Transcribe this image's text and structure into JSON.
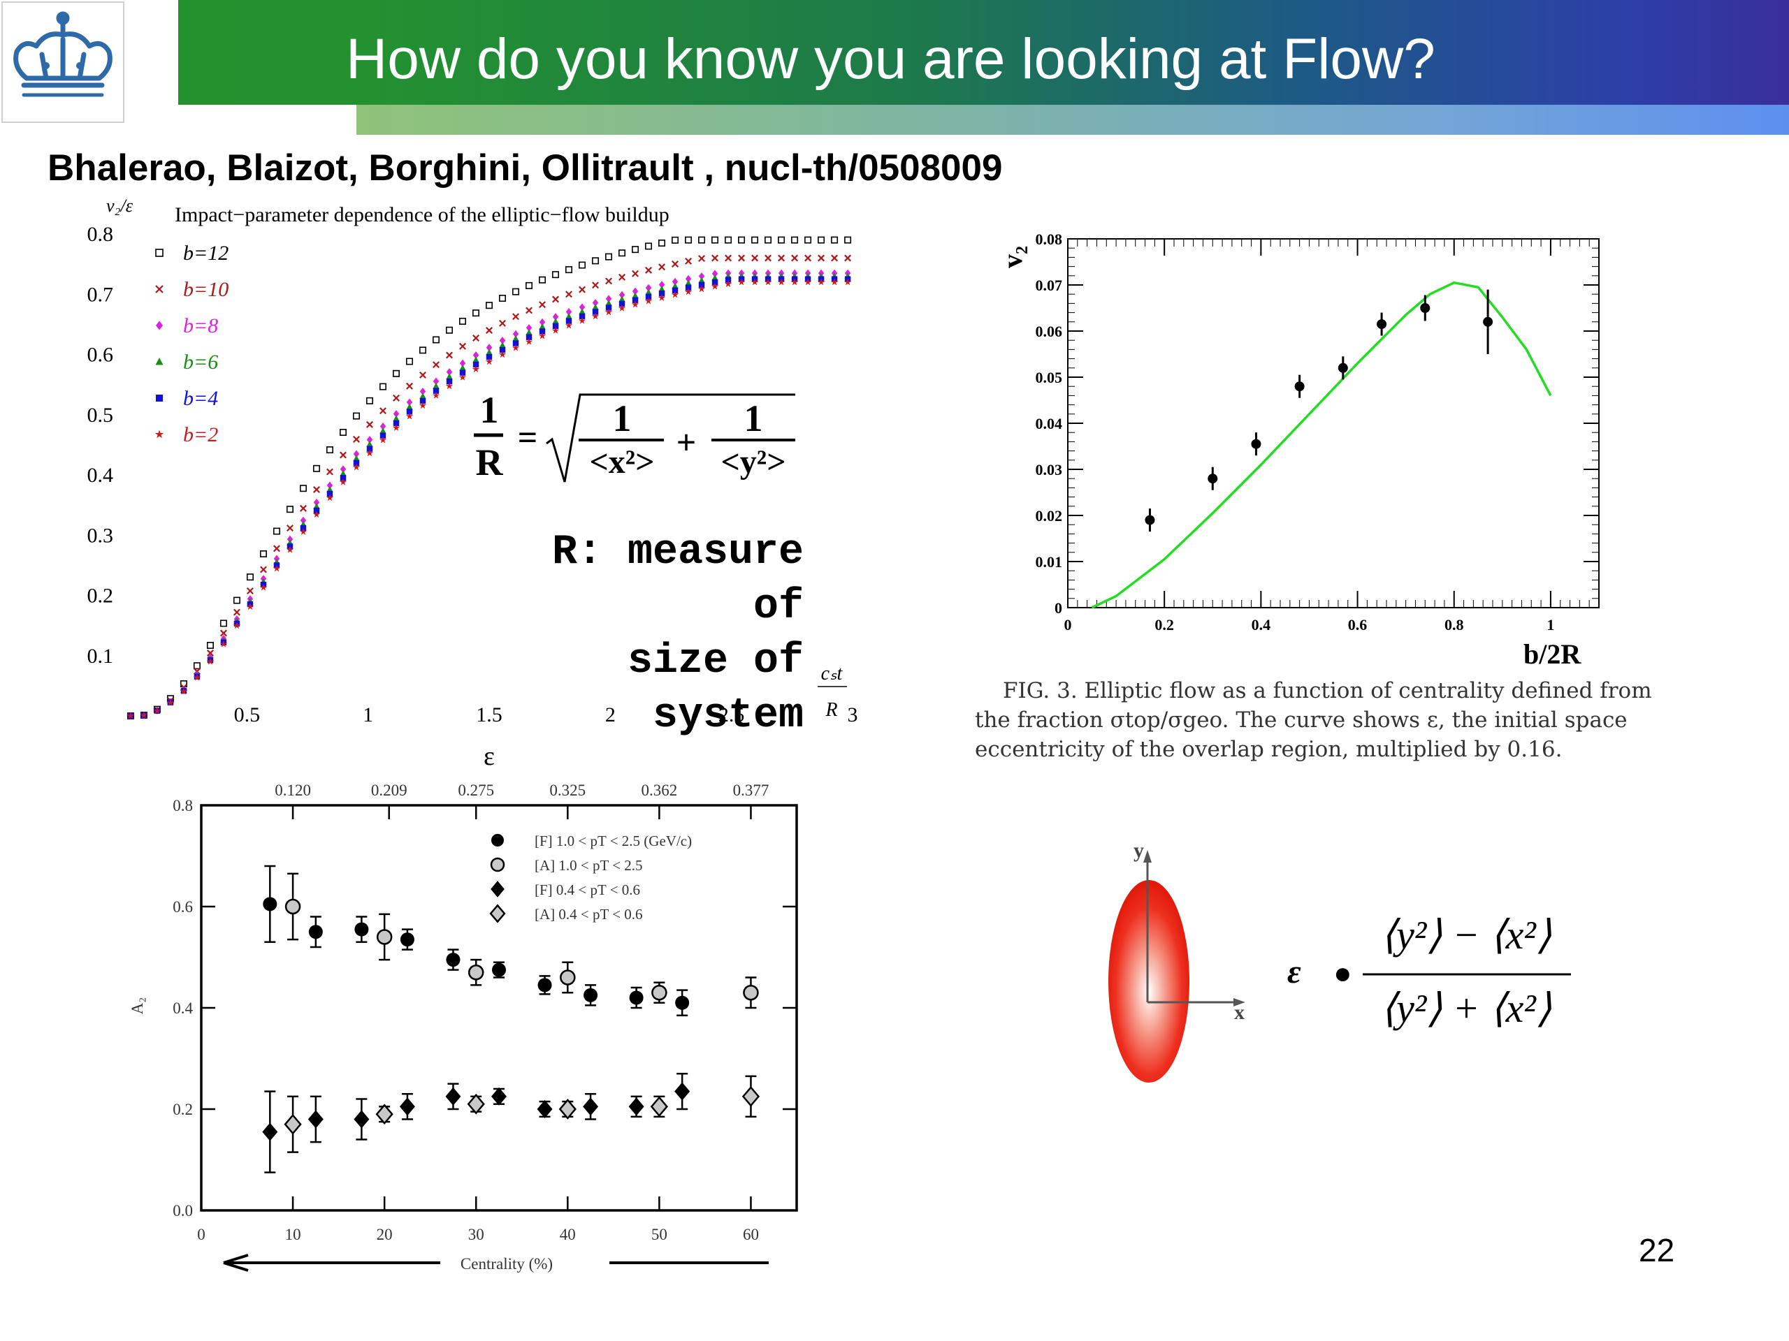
{
  "slide": {
    "title": "How do you know you are looking at Flow?",
    "authors": "Bhalerao, Blaizot, Borghini, Ollitrault , nucl-th/0508009",
    "page_number": "22"
  },
  "formula": {
    "one": "1",
    "R": "R",
    "eq": "=",
    "plus": "+",
    "x2": "<x²>",
    "y2": "<y²>",
    "note_line1": "R: measure of",
    "note_line2": "size of system"
  },
  "fig3": {
    "caption_lines": [
      "FIG. 3.  Elliptic flow as a function of centrality defined from",
      "the fraction σtop/σgeo.  The curve shows ε, the initial space",
      "eccentricity of the overlap region, multiplied by 0.16."
    ]
  },
  "diagram": {
    "y_label": "y",
    "x_label": "x",
    "lhs": "ε",
    "dot": "●",
    "num": "⟨y²⟩ − ⟨x²⟩",
    "den": "⟨y²⟩ + ⟨x²⟩"
  },
  "chart_data": [
    {
      "type": "scatter",
      "title": "Impact−parameter dependence of the elliptic−flow buildup",
      "ylabel": "v₂/ε",
      "xlabel": "cₛt / R",
      "xlim": [
        0,
        3
      ],
      "ylim": [
        0,
        0.8
      ],
      "x_ticks": [
        "0.5",
        "1",
        "1.5",
        "2",
        "2.5",
        "3"
      ],
      "y_ticks": [
        "0.8",
        "0.7",
        "0.6",
        "0.5",
        "0.4",
        "0.3",
        "0.2",
        "0.1"
      ],
      "legend_position": "top-left",
      "grid": false,
      "series": [
        {
          "name": "b=12",
          "color": "#000000",
          "marker": "open-square",
          "final": 0.79
        },
        {
          "name": "b=10",
          "color": "#b01818",
          "marker": "cross",
          "final": 0.76
        },
        {
          "name": "b=8",
          "color": "#e020e0",
          "marker": "diamond",
          "final": 0.735
        },
        {
          "name": "b=6",
          "color": "#169016",
          "marker": "triangle",
          "final": 0.73
        },
        {
          "name": "b=4",
          "color": "#1010d8",
          "marker": "square",
          "final": 0.725
        },
        {
          "name": "b=2",
          "color": "#d01818",
          "marker": "star",
          "final": 0.72
        }
      ]
    },
    {
      "type": "scatter",
      "ylabel": "v₂",
      "xlabel": "b/2R",
      "xlim": [
        0,
        1.1
      ],
      "ylim": [
        0,
        0.08
      ],
      "x_ticks": [
        "0",
        "0.2",
        "0.4",
        "0.6",
        "0.8",
        "1"
      ],
      "y_ticks": [
        "0",
        "0.01",
        "0.02",
        "0.03",
        "0.04",
        "0.05",
        "0.06",
        "0.07",
        "0.08"
      ],
      "grid": false,
      "points": [
        {
          "x": 0.17,
          "y": 0.019,
          "err": 0.0025
        },
        {
          "x": 0.3,
          "y": 0.028,
          "err": 0.0025
        },
        {
          "x": 0.39,
          "y": 0.0355,
          "err": 0.0025
        },
        {
          "x": 0.48,
          "y": 0.048,
          "err": 0.0025
        },
        {
          "x": 0.57,
          "y": 0.052,
          "err": 0.0025
        },
        {
          "x": 0.65,
          "y": 0.0615,
          "err": 0.0025
        },
        {
          "x": 0.74,
          "y": 0.065,
          "err": 0.0028
        },
        {
          "x": 0.87,
          "y": 0.062,
          "err": 0.007
        }
      ],
      "curve": {
        "color": "#22dd22",
        "points": [
          [
            0.05,
            0
          ],
          [
            0.1,
            0.0025
          ],
          [
            0.2,
            0.0105
          ],
          [
            0.3,
            0.0205
          ],
          [
            0.4,
            0.031
          ],
          [
            0.5,
            0.042
          ],
          [
            0.6,
            0.053
          ],
          [
            0.7,
            0.0635
          ],
          [
            0.75,
            0.068
          ],
          [
            0.8,
            0.0705
          ],
          [
            0.85,
            0.0695
          ],
          [
            0.9,
            0.063
          ],
          [
            0.95,
            0.056
          ],
          [
            1.0,
            0.046
          ]
        ]
      }
    },
    {
      "type": "scatter",
      "ylabel": "A₂",
      "xlabel": "Centrality (%)",
      "top_axis_label": "ε",
      "top_ticks": [
        "0.120",
        "0.209",
        "0.275",
        "0.325",
        "0.362",
        "0.377"
      ],
      "top_tick_positions": [
        10,
        20.5,
        30,
        40,
        50,
        60
      ],
      "xlim": [
        0,
        65
      ],
      "ylim": [
        0,
        0.8
      ],
      "x_ticks": [
        "0",
        "10",
        "20",
        "30",
        "40",
        "50",
        "60"
      ],
      "y_ticks": [
        "0.0",
        "0.2",
        "0.4",
        "0.6",
        "0.8"
      ],
      "legend_position": "top-right",
      "grid": false,
      "series": [
        {
          "name": "[F] 1.0 < pT < 2.5 (GeV/c)",
          "marker": "filled-circle",
          "points": [
            [
              7.5,
              0.605,
              0.075
            ],
            [
              12.5,
              0.55,
              0.03
            ],
            [
              17.5,
              0.555,
              0.025
            ],
            [
              22.5,
              0.535,
              0.02
            ],
            [
              27.5,
              0.495,
              0.02
            ],
            [
              32.5,
              0.475,
              0.015
            ],
            [
              37.5,
              0.445,
              0.018
            ],
            [
              42.5,
              0.425,
              0.02
            ],
            [
              47.5,
              0.42,
              0.02
            ],
            [
              52.5,
              0.41,
              0.025
            ]
          ]
        },
        {
          "name": "[A] 1.0 < pT < 2.5",
          "marker": "open-circle",
          "points": [
            [
              10,
              0.6,
              0.065
            ],
            [
              20,
              0.54,
              0.045
            ],
            [
              30,
              0.47,
              0.025
            ],
            [
              40,
              0.46,
              0.03
            ],
            [
              50,
              0.43,
              0.02
            ],
            [
              60,
              0.43,
              0.03
            ]
          ]
        },
        {
          "name": "[F] 0.4 < pT < 0.6",
          "marker": "filled-diamond",
          "points": [
            [
              7.5,
              0.155,
              0.08
            ],
            [
              12.5,
              0.18,
              0.045
            ],
            [
              17.5,
              0.18,
              0.04
            ],
            [
              22.5,
              0.205,
              0.025
            ],
            [
              27.5,
              0.225,
              0.025
            ],
            [
              32.5,
              0.225,
              0.015
            ],
            [
              37.5,
              0.2,
              0.015
            ],
            [
              42.5,
              0.205,
              0.025
            ],
            [
              47.5,
              0.205,
              0.02
            ],
            [
              52.5,
              0.235,
              0.035
            ]
          ]
        },
        {
          "name": "[A] 0.4 < pT < 0.6",
          "marker": "open-diamond",
          "points": [
            [
              10,
              0.17,
              0.055
            ],
            [
              20,
              0.19,
              0.015
            ],
            [
              30,
              0.21,
              0.015
            ],
            [
              40,
              0.2,
              0.015
            ],
            [
              50,
              0.205,
              0.02
            ],
            [
              60,
              0.225,
              0.04
            ]
          ]
        }
      ]
    }
  ]
}
